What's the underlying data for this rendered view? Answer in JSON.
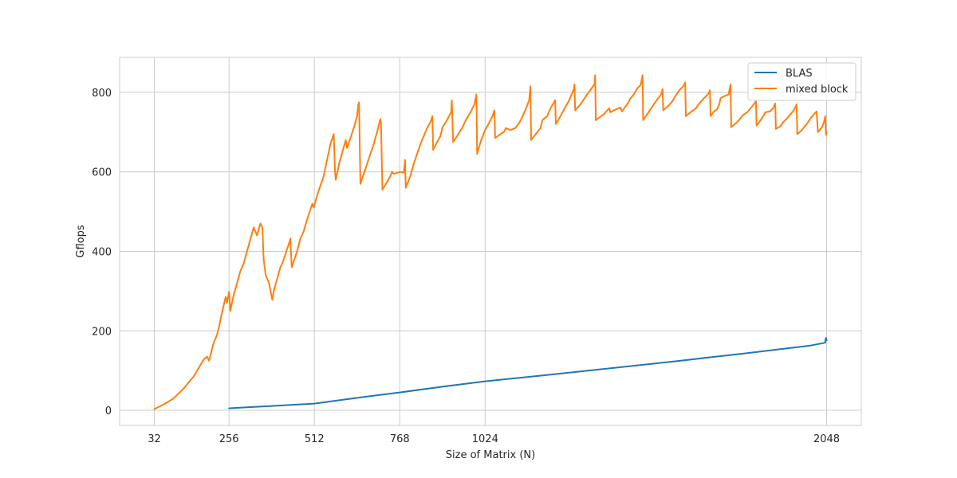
{
  "chart_data": {
    "type": "line",
    "title": "",
    "xlabel": "Size of Matrix (N)",
    "ylabel": "Gflops",
    "xlim": [
      -72,
      2152
    ],
    "ylim": [
      -38,
      888
    ],
    "xticks": [
      32,
      256,
      512,
      768,
      1024,
      2048
    ],
    "xtick_labels": [
      "32",
      "256",
      "512",
      "768",
      "1024",
      "2048"
    ],
    "yticks": [
      0,
      200,
      400,
      600,
      800
    ],
    "ytick_labels": [
      "0",
      "200",
      "400",
      "600",
      "800"
    ],
    "grid": true,
    "legend_position": "top-right",
    "series": [
      {
        "name": "BLAS",
        "color": "#1f77b4",
        "points": [
          [
            256,
            5
          ],
          [
            320,
            8
          ],
          [
            384,
            11
          ],
          [
            448,
            14
          ],
          [
            512,
            17
          ],
          [
            600,
            27
          ],
          [
            700,
            38
          ],
          [
            768,
            45
          ],
          [
            900,
            60
          ],
          [
            1024,
            73
          ],
          [
            1200,
            88
          ],
          [
            1400,
            106
          ],
          [
            1600,
            124
          ],
          [
            1800,
            143
          ],
          [
            2000,
            163
          ],
          [
            2044,
            170
          ],
          [
            2044,
            174
          ],
          [
            2046,
            182
          ],
          [
            2048,
            176
          ]
        ]
      },
      {
        "name": "mixed block",
        "color": "#ff7f0e",
        "points": [
          [
            32,
            3
          ],
          [
            60,
            15
          ],
          [
            90,
            30
          ],
          [
            120,
            55
          ],
          [
            150,
            85
          ],
          [
            180,
            128
          ],
          [
            190,
            135
          ],
          [
            196,
            125
          ],
          [
            210,
            170
          ],
          [
            220,
            190
          ],
          [
            226,
            210
          ],
          [
            236,
            250
          ],
          [
            246,
            285
          ],
          [
            250,
            270
          ],
          [
            256,
            298
          ],
          [
            258,
            280
          ],
          [
            260,
            250
          ],
          [
            270,
            290
          ],
          [
            280,
            320
          ],
          [
            290,
            350
          ],
          [
            300,
            370
          ],
          [
            310,
            400
          ],
          [
            320,
            430
          ],
          [
            330,
            460
          ],
          [
            340,
            440
          ],
          [
            350,
            470
          ],
          [
            356,
            460
          ],
          [
            360,
            380
          ],
          [
            366,
            340
          ],
          [
            376,
            320
          ],
          [
            384,
            285
          ],
          [
            386,
            278
          ],
          [
            390,
            300
          ],
          [
            400,
            330
          ],
          [
            410,
            360
          ],
          [
            416,
            370
          ],
          [
            424,
            390
          ],
          [
            436,
            420
          ],
          [
            440,
            432
          ],
          [
            444,
            360
          ],
          [
            460,
            400
          ],
          [
            470,
            432
          ],
          [
            480,
            450
          ],
          [
            490,
            480
          ],
          [
            500,
            505
          ],
          [
            506,
            520
          ],
          [
            510,
            510
          ],
          [
            520,
            540
          ],
          [
            530,
            565
          ],
          [
            540,
            590
          ],
          [
            550,
            630
          ],
          [
            560,
            670
          ],
          [
            570,
            695
          ],
          [
            574,
            600
          ],
          [
            576,
            580
          ],
          [
            586,
            620
          ],
          [
            596,
            650
          ],
          [
            606,
            680
          ],
          [
            610,
            660
          ],
          [
            630,
            710
          ],
          [
            640,
            740
          ],
          [
            644,
            770
          ],
          [
            646,
            775
          ],
          [
            650,
            570
          ],
          [
            664,
            605
          ],
          [
            676,
            635
          ],
          [
            690,
            670
          ],
          [
            700,
            700
          ],
          [
            710,
            733
          ],
          [
            712,
            720
          ],
          [
            716,
            555
          ],
          [
            730,
            575
          ],
          [
            740,
            590
          ],
          [
            745,
            600
          ],
          [
            750,
            595
          ],
          [
            770,
            600
          ],
          [
            780,
            598
          ],
          [
            784,
            630
          ],
          [
            786,
            560
          ],
          [
            800,
            590
          ],
          [
            810,
            620
          ],
          [
            820,
            645
          ],
          [
            830,
            670
          ],
          [
            840,
            690
          ],
          [
            850,
            710
          ],
          [
            860,
            725
          ],
          [
            866,
            740
          ],
          [
            868,
            655
          ],
          [
            880,
            675
          ],
          [
            890,
            690
          ],
          [
            896,
            712
          ],
          [
            906,
            725
          ],
          [
            916,
            740
          ],
          [
            922,
            750
          ],
          [
            924,
            780
          ],
          [
            928,
            675
          ],
          [
            940,
            690
          ],
          [
            956,
            712
          ],
          [
            966,
            730
          ],
          [
            980,
            750
          ],
          [
            992,
            770
          ],
          [
            998,
            795
          ],
          [
            1000,
            645
          ],
          [
            1012,
            680
          ],
          [
            1024,
            705
          ],
          [
            1034,
            720
          ],
          [
            1046,
            740
          ],
          [
            1052,
            755
          ],
          [
            1054,
            685
          ],
          [
            1070,
            695
          ],
          [
            1080,
            700
          ],
          [
            1086,
            710
          ],
          [
            1100,
            705
          ],
          [
            1114,
            710
          ],
          [
            1124,
            720
          ],
          [
            1134,
            735
          ],
          [
            1146,
            758
          ],
          [
            1156,
            780
          ],
          [
            1160,
            815
          ],
          [
            1162,
            680
          ],
          [
            1176,
            695
          ],
          [
            1190,
            710
          ],
          [
            1196,
            730
          ],
          [
            1210,
            740
          ],
          [
            1220,
            760
          ],
          [
            1234,
            780
          ],
          [
            1236,
            720
          ],
          [
            1250,
            740
          ],
          [
            1264,
            762
          ],
          [
            1276,
            780
          ],
          [
            1290,
            808
          ],
          [
            1292,
            820
          ],
          [
            1294,
            755
          ],
          [
            1310,
            770
          ],
          [
            1330,
            795
          ],
          [
            1352,
            820
          ],
          [
            1354,
            843
          ],
          [
            1356,
            730
          ],
          [
            1380,
            745
          ],
          [
            1396,
            760
          ],
          [
            1400,
            750
          ],
          [
            1410,
            755
          ],
          [
            1424,
            760
          ],
          [
            1430,
            762
          ],
          [
            1434,
            752
          ],
          [
            1450,
            770
          ],
          [
            1460,
            785
          ],
          [
            1470,
            795
          ],
          [
            1480,
            810
          ],
          [
            1490,
            818
          ],
          [
            1496,
            843
          ],
          [
            1498,
            730
          ],
          [
            1510,
            745
          ],
          [
            1522,
            760
          ],
          [
            1530,
            770
          ],
          [
            1540,
            782
          ],
          [
            1552,
            795
          ],
          [
            1556,
            808
          ],
          [
            1558,
            755
          ],
          [
            1572,
            765
          ],
          [
            1586,
            778
          ],
          [
            1594,
            790
          ],
          [
            1606,
            805
          ],
          [
            1618,
            815
          ],
          [
            1624,
            825
          ],
          [
            1626,
            740
          ],
          [
            1640,
            750
          ],
          [
            1656,
            760
          ],
          [
            1664,
            770
          ],
          [
            1680,
            785
          ],
          [
            1692,
            795
          ],
          [
            1698,
            805
          ],
          [
            1700,
            740
          ],
          [
            1710,
            752
          ],
          [
            1720,
            758
          ],
          [
            1726,
            770
          ],
          [
            1730,
            785
          ],
          [
            1740,
            790
          ],
          [
            1754,
            795
          ],
          [
            1760,
            820
          ],
          [
            1762,
            712
          ],
          [
            1780,
            725
          ],
          [
            1790,
            735
          ],
          [
            1796,
            742
          ],
          [
            1810,
            750
          ],
          [
            1820,
            760
          ],
          [
            1828,
            768
          ],
          [
            1836,
            778
          ],
          [
            1838,
            716
          ],
          [
            1850,
            730
          ],
          [
            1858,
            740
          ],
          [
            1864,
            750
          ],
          [
            1878,
            752
          ],
          [
            1888,
            760
          ],
          [
            1894,
            772
          ],
          [
            1896,
            708
          ],
          [
            1910,
            715
          ],
          [
            1918,
            725
          ],
          [
            1930,
            735
          ],
          [
            1940,
            745
          ],
          [
            1950,
            755
          ],
          [
            1958,
            770
          ],
          [
            1960,
            695
          ],
          [
            1974,
            705
          ],
          [
            1980,
            712
          ],
          [
            1990,
            722
          ],
          [
            2000,
            735
          ],
          [
            2010,
            745
          ],
          [
            2018,
            752
          ],
          [
            2022,
            700
          ],
          [
            2034,
            712
          ],
          [
            2040,
            725
          ],
          [
            2044,
            740
          ],
          [
            2046,
            693
          ],
          [
            2048,
            700
          ]
        ]
      }
    ]
  }
}
